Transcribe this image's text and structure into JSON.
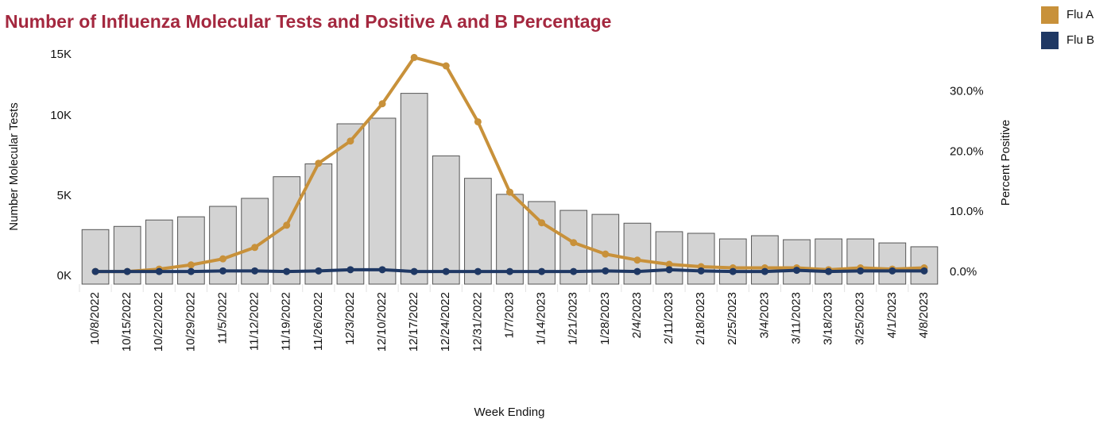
{
  "chart_data": {
    "type": "bar_line",
    "title": "Number of Influenza Molecular Tests and Positive A and B Percentage",
    "xlabel": "Week Ending",
    "ylabel": "Number Molecular Tests",
    "y2label": "Percent Positive",
    "categories": [
      "10/8/2022",
      "10/15/2022",
      "10/22/2022",
      "10/29/2022",
      "11/5/2022",
      "11/12/2022",
      "11/19/2022",
      "11/26/2022",
      "12/3/2022",
      "12/10/2022",
      "12/17/2022",
      "12/24/2022",
      "12/31/2022",
      "1/7/2023",
      "1/14/2023",
      "1/21/2023",
      "1/28/2023",
      "2/4/2023",
      "2/11/2023",
      "2/18/2023",
      "2/25/2023",
      "3/4/2023",
      "3/11/2023",
      "3/18/2023",
      "3/25/2023",
      "4/1/2023",
      "4/8/2023"
    ],
    "bars": {
      "color": "#d3d3d3",
      "values": [
        3400,
        3600,
        4000,
        4200,
        4850,
        5350,
        6700,
        7500,
        10000,
        10350,
        11900,
        8000,
        6600,
        5600,
        5150,
        4600,
        4350,
        3800,
        3270,
        3170,
        2820,
        3020,
        2770,
        2820,
        2820,
        2570,
        2330
      ]
    },
    "series": [
      {
        "name": "Flu A",
        "color": "#c8913a",
        "axis": "y2",
        "values": [
          0.1,
          0.1,
          0.5,
          1.2,
          2.2,
          4.1,
          7.8,
          18.1,
          21.8,
          28.0,
          35.7,
          34.3,
          25.0,
          13.3,
          8.2,
          4.9,
          3.0,
          2.0,
          1.3,
          0.9,
          0.7,
          0.7,
          0.7,
          0.4,
          0.7,
          0.5,
          0.7
        ]
      },
      {
        "name": "Flu B",
        "color": "#1f3864",
        "axis": "y2",
        "values": [
          0.1,
          0.1,
          0.1,
          0.1,
          0.2,
          0.2,
          0.1,
          0.2,
          0.4,
          0.4,
          0.1,
          0.1,
          0.1,
          0.1,
          0.1,
          0.1,
          0.2,
          0.1,
          0.4,
          0.2,
          0.1,
          0.1,
          0.3,
          0.1,
          0.2,
          0.2,
          0.2
        ]
      }
    ],
    "ylim": [
      0,
      15000
    ],
    "yticks": [
      {
        "value": 0,
        "label": "0K"
      },
      {
        "value": 5000,
        "label": "5K"
      },
      {
        "value": 10000,
        "label": "10K"
      },
      {
        "value": 15000,
        "label": "15K"
      }
    ],
    "y2lim": [
      -2,
      38
    ],
    "y2ticks": [
      {
        "value": 0,
        "label": "0.0%"
      },
      {
        "value": 10,
        "label": "10.0%"
      },
      {
        "value": 20,
        "label": "20.0%"
      },
      {
        "value": 30,
        "label": "30.0%"
      }
    ],
    "grid": false,
    "legend": "top-right"
  }
}
